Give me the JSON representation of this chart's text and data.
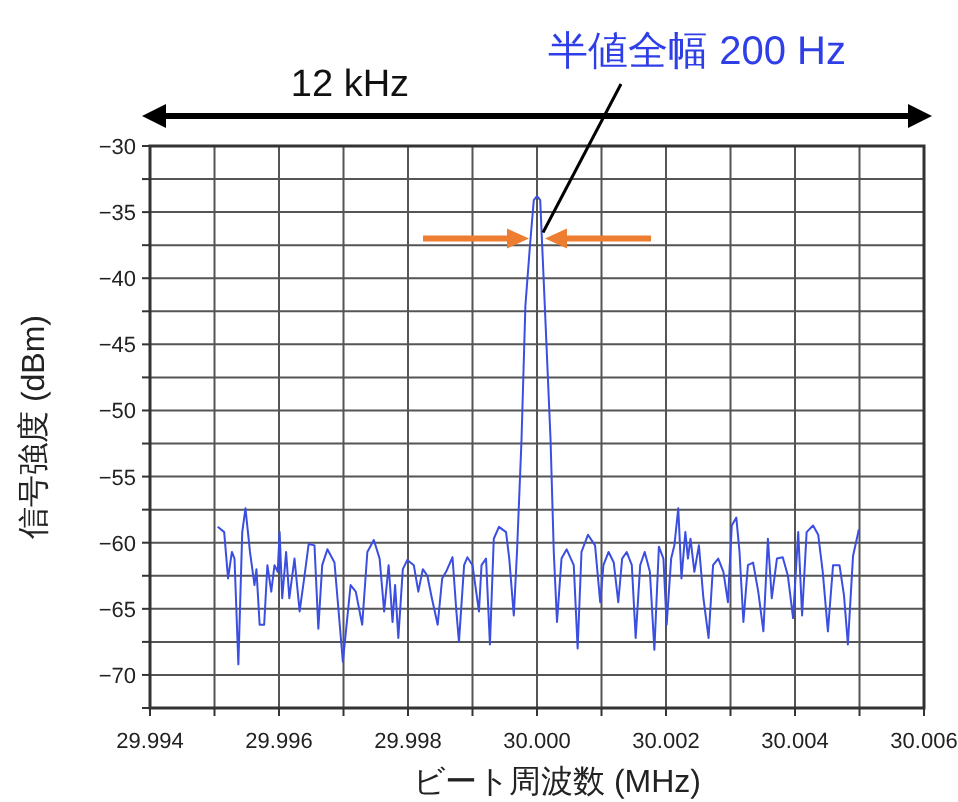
{
  "chart_data": {
    "type": "line",
    "xlabel": "ビート周波数 (MHz)",
    "ylabel": "信号強度 (dBm)",
    "xlim": [
      29.994,
      30.006
    ],
    "ylim": [
      -72.5,
      -30
    ],
    "xticks": [
      {
        "value": 29.994,
        "label": "29.994"
      },
      {
        "value": 29.995,
        "label": null
      },
      {
        "value": 29.996,
        "label": "29.996"
      },
      {
        "value": 29.997,
        "label": null
      },
      {
        "value": 29.998,
        "label": "29.998"
      },
      {
        "value": 29.999,
        "label": null
      },
      {
        "value": 30.0,
        "label": "30.000"
      },
      {
        "value": 30.001,
        "label": null
      },
      {
        "value": 30.002,
        "label": "30.002"
      },
      {
        "value": 30.003,
        "label": null
      },
      {
        "value": 30.004,
        "label": "30.004"
      },
      {
        "value": 30.005,
        "label": null
      },
      {
        "value": 30.006,
        "label": "30.006"
      }
    ],
    "yticks": [
      {
        "value": -30,
        "label": "−30"
      },
      {
        "value": -32.5,
        "label": null
      },
      {
        "value": -35,
        "label": "−35"
      },
      {
        "value": -37.5,
        "label": null
      },
      {
        "value": -40,
        "label": "−40"
      },
      {
        "value": -42.5,
        "label": null
      },
      {
        "value": -45,
        "label": "−45"
      },
      {
        "value": -47.5,
        "label": null
      },
      {
        "value": -50,
        "label": "−50"
      },
      {
        "value": -52.5,
        "label": null
      },
      {
        "value": -55,
        "label": "−55"
      },
      {
        "value": -57.5,
        "label": null
      },
      {
        "value": -60,
        "label": "−60"
      },
      {
        "value": -62.5,
        "label": null
      },
      {
        "value": -65,
        "label": "−65"
      },
      {
        "value": -67.5,
        "label": null
      },
      {
        "value": -70,
        "label": "−70"
      },
      {
        "value": -72.5,
        "label": null
      }
    ],
    "grid": true,
    "marker": "none",
    "line_style": "solid",
    "annotations": [
      "12 kHz",
      {
        "text": "半値全幅 200 Hz",
        "x": 30.0,
        "y": -37
      }
    ],
    "series": [
      {
        "color": "#3a4ee0",
        "x": [
          29.99505,
          29.99515,
          29.99521,
          29.99527,
          29.99531,
          29.99537,
          29.99543,
          29.99548,
          29.99555,
          29.99562,
          29.99565,
          29.9957,
          29.99577,
          29.99582,
          29.99588,
          29.99593,
          29.99598,
          29.99601,
          29.99605,
          29.99611,
          29.99616,
          29.99624,
          29.99632,
          29.99639,
          29.99646,
          29.99655,
          29.99661,
          29.99667,
          29.99675,
          29.99686,
          29.99699,
          29.99711,
          29.99719,
          29.99729,
          29.99737,
          29.99747,
          29.99756,
          29.99763,
          29.9977,
          29.99776,
          29.9978,
          29.99785,
          29.99792,
          29.99799,
          29.99809,
          29.99816,
          29.99823,
          29.9983,
          29.99837,
          29.99846,
          29.99853,
          29.99859,
          29.99869,
          29.99875,
          29.99879,
          29.99887,
          29.99892,
          29.999,
          29.9991,
          29.99914,
          29.99921,
          29.99927,
          29.99933,
          29.99941,
          29.99952,
          29.99957,
          29.99964,
          29.99969,
          29.99976,
          29.99982,
          29.99989,
          29.99995,
          30.0,
          30.00005,
          30.00013,
          30.00021,
          30.00026,
          30.00031,
          30.00038,
          30.00046,
          30.00057,
          30.00063,
          30.00069,
          30.00079,
          30.0009,
          30.00098,
          30.00103,
          30.00111,
          30.00119,
          30.00126,
          30.00132,
          30.00139,
          30.00147,
          30.00153,
          30.0016,
          30.00167,
          30.00175,
          30.00182,
          30.00189,
          30.00196,
          30.00201,
          30.00208,
          30.00213,
          30.00219,
          30.00224,
          30.0023,
          30.00234,
          30.00238,
          30.00244,
          30.00251,
          30.00258,
          30.00266,
          30.00273,
          30.00281,
          30.00289,
          30.00296,
          30.00302,
          30.00309,
          30.00314,
          30.0032,
          30.00327,
          30.00335,
          30.00343,
          30.00351,
          30.00358,
          30.00364,
          30.00372,
          30.00381,
          30.00389,
          30.00397,
          30.00405,
          30.00411,
          30.00418,
          30.00428,
          30.00436,
          30.00443,
          30.00451,
          30.00459,
          30.00469,
          30.00476,
          30.00482,
          30.0049,
          30.00499
        ],
        "values": [
          -58.8,
          -59.2,
          -62.7,
          -60.7,
          -61.2,
          -69.2,
          -59.2,
          -57.4,
          -60.7,
          -63.2,
          -62.0,
          -66.2,
          -66.2,
          -61.7,
          -63.7,
          -61.7,
          -62.2,
          -59.2,
          -64.2,
          -60.7,
          -64.2,
          -61.2,
          -65.2,
          -62.7,
          -60.1,
          -60.2,
          -66.5,
          -61.7,
          -60.5,
          -61.5,
          -69.0,
          -63.2,
          -63.7,
          -66.2,
          -60.7,
          -59.8,
          -61.2,
          -65.2,
          -61.7,
          -66.0,
          -63.2,
          -67.2,
          -62.0,
          -61.3,
          -61.7,
          -63.7,
          -62.0,
          -62.5,
          -64.2,
          -66.2,
          -62.7,
          -62.2,
          -61.1,
          -65.2,
          -67.5,
          -61.7,
          -61.1,
          -61.7,
          -65.2,
          -61.7,
          -61.2,
          -67.7,
          -59.7,
          -58.8,
          -59.2,
          -61.2,
          -65.5,
          -60.7,
          -52.2,
          -42.1,
          -37.6,
          -34.1,
          -33.8,
          -34.1,
          -43.1,
          -52.2,
          -60.7,
          -66.0,
          -61.2,
          -60.5,
          -61.7,
          -68.0,
          -60.7,
          -59.4,
          -60.2,
          -64.5,
          -61.7,
          -60.7,
          -61.5,
          -64.5,
          -61.2,
          -60.7,
          -61.7,
          -67.2,
          -61.7,
          -60.7,
          -62.2,
          -68.1,
          -60.3,
          -61.2,
          -66.2,
          -61.2,
          -60.2,
          -57.4,
          -62.7,
          -59.2,
          -61.2,
          -59.7,
          -62.2,
          -60.2,
          -64.2,
          -67.2,
          -61.7,
          -61.2,
          -62.2,
          -64.5,
          -58.7,
          -58.1,
          -60.7,
          -66.0,
          -61.7,
          -61.5,
          -63.7,
          -66.7,
          -59.7,
          -64.2,
          -61.2,
          -61.1,
          -62.5,
          -65.7,
          -59.2,
          -65.5,
          -59.2,
          -58.7,
          -59.4,
          -62.2,
          -66.7,
          -61.7,
          -61.7,
          -64.0,
          -67.7,
          -61.0,
          -59.0
        ]
      }
    ]
  }
}
